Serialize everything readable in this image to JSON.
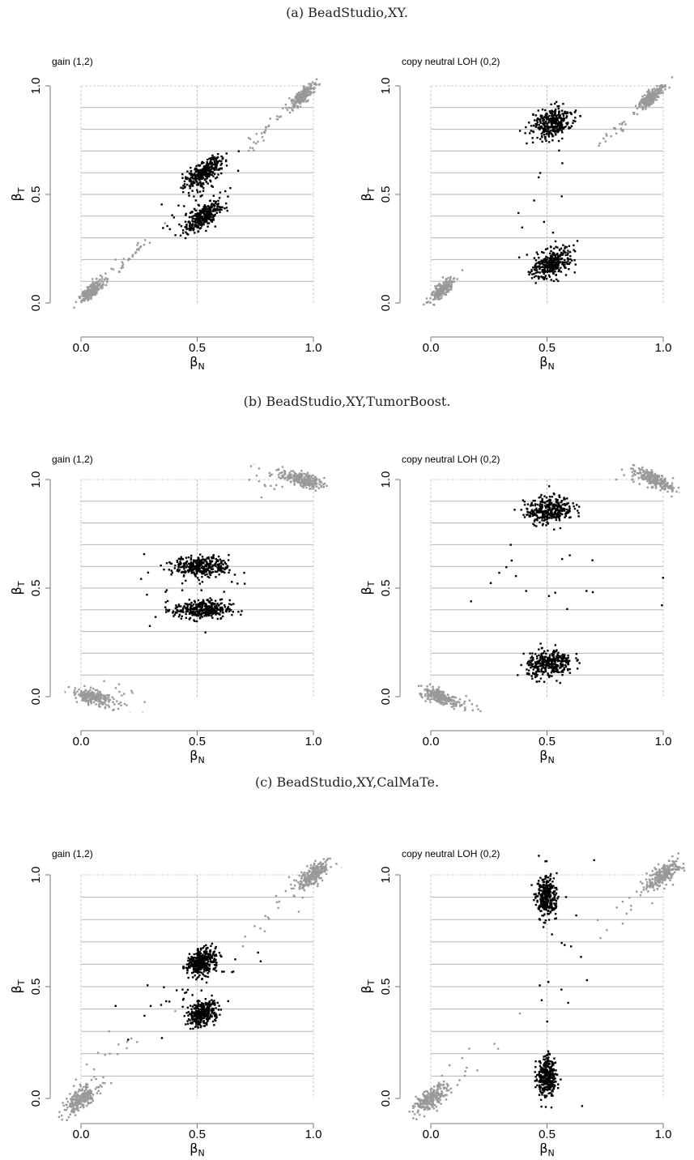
{
  "captions": [
    "(a) BeadStudio,XY.",
    "(b) BeadStudio,XY,TumorBoost.",
    "(c) BeadStudio,XY,CalMaTe."
  ],
  "colors": {
    "homozygous": "#999999",
    "heterozygous": "#000000",
    "grid": "#b5b5b5",
    "axis": "#777777"
  },
  "chart_data": [
    {
      "type": "scatter",
      "section": 0,
      "title": "gain (1,2)",
      "xlabel": "β",
      "xlabel_sub": "N",
      "ylabel": "β",
      "ylabel_sub": "T",
      "xlim": [
        0,
        1
      ],
      "ylim": [
        0,
        1
      ],
      "xticks": [
        0.0,
        0.5,
        1.0
      ],
      "xtick_labels": [
        "0.0",
        "0.5",
        "1.0"
      ],
      "yticks": [
        0.0,
        0.5,
        1.0
      ],
      "ytick_labels": [
        "0.0",
        "0.5",
        "1.0"
      ],
      "hlines": [
        0.9,
        0.8,
        0.7,
        0.6,
        0.5,
        0.4,
        0.3,
        0.2,
        0.1
      ],
      "vline": 0.5,
      "series": [
        {
          "color": "homozygous",
          "clusters": [
            {
              "cx": 0.05,
              "cy": 0.06,
              "major": 0.035,
              "minor": 0.012,
              "angle": 45,
              "n": 220
            },
            {
              "cx": 0.95,
              "cy": 0.95,
              "major": 0.035,
              "minor": 0.012,
              "angle": 45,
              "n": 220
            },
            {
              "cx": 0.2,
              "cy": 0.2,
              "major": 0.09,
              "minor": 0.012,
              "angle": 45,
              "n": 30
            },
            {
              "cx": 0.8,
              "cy": 0.8,
              "major": 0.09,
              "minor": 0.012,
              "angle": 45,
              "n": 30
            }
          ]
        },
        {
          "color": "heterozygous",
          "clusters": [
            {
              "cx": 0.53,
              "cy": 0.6,
              "major": 0.05,
              "minor": 0.02,
              "angle": 42,
              "n": 320
            },
            {
              "cx": 0.53,
              "cy": 0.4,
              "major": 0.05,
              "minor": 0.02,
              "angle": 42,
              "n": 320
            },
            {
              "cx": 0.5,
              "cy": 0.5,
              "major": 0.13,
              "minor": 0.04,
              "angle": 45,
              "n": 40
            }
          ]
        }
      ]
    },
    {
      "type": "scatter",
      "section": 0,
      "title": "copy neutral LOH (0,2)",
      "xlabel": "β",
      "xlabel_sub": "N",
      "ylabel": "β",
      "ylabel_sub": "T",
      "xlim": [
        0,
        1
      ],
      "ylim": [
        0,
        1
      ],
      "xticks": [
        0.0,
        0.5,
        1.0
      ],
      "xtick_labels": [
        "0.0",
        "0.5",
        "1.0"
      ],
      "yticks": [
        0.0,
        0.5,
        1.0
      ],
      "ytick_labels": [
        "0.0",
        "0.5",
        "1.0"
      ],
      "hlines": [
        0.9,
        0.8,
        0.7,
        0.6,
        0.5,
        0.4,
        0.3,
        0.2,
        0.1
      ],
      "vline": 0.5,
      "series": [
        {
          "color": "homozygous",
          "clusters": [
            {
              "cx": 0.05,
              "cy": 0.06,
              "major": 0.035,
              "minor": 0.012,
              "angle": 45,
              "n": 220
            },
            {
              "cx": 0.95,
              "cy": 0.95,
              "major": 0.035,
              "minor": 0.012,
              "angle": 45,
              "n": 220
            },
            {
              "cx": 0.8,
              "cy": 0.8,
              "major": 0.08,
              "minor": 0.012,
              "angle": 45,
              "n": 25
            }
          ]
        },
        {
          "color": "heterozygous",
          "clusters": [
            {
              "cx": 0.52,
              "cy": 0.83,
              "major": 0.045,
              "minor": 0.03,
              "angle": 30,
              "n": 330
            },
            {
              "cx": 0.52,
              "cy": 0.18,
              "major": 0.045,
              "minor": 0.03,
              "angle": 30,
              "n": 330
            },
            {
              "cx": 0.5,
              "cy": 0.5,
              "major": 0.25,
              "minor": 0.06,
              "angle": 80,
              "n": 18
            }
          ]
        }
      ]
    },
    {
      "type": "scatter",
      "section": 1,
      "title": "gain (1,2)",
      "xlabel": "β",
      "xlabel_sub": "N",
      "ylabel": "β",
      "ylabel_sub": "T",
      "xlim": [
        0,
        1
      ],
      "ylim": [
        0,
        1
      ],
      "xticks": [
        0.0,
        0.5,
        1.0
      ],
      "xtick_labels": [
        "0.0",
        "0.5",
        "1.0"
      ],
      "yticks": [
        0.0,
        0.5,
        1.0
      ],
      "ytick_labels": [
        "0.0",
        "0.5",
        "1.0"
      ],
      "hlines": [
        0.9,
        0.8,
        0.7,
        0.6,
        0.5,
        0.4,
        0.3,
        0.2,
        0.1
      ],
      "vline": 0.5,
      "series": [
        {
          "color": "homozygous",
          "clusters": [
            {
              "cx": 0.05,
              "cy": 0.0,
              "major": 0.045,
              "minor": 0.015,
              "angle": -15,
              "n": 220
            },
            {
              "cx": 0.95,
              "cy": 1.0,
              "major": 0.045,
              "minor": 0.015,
              "angle": -15,
              "n": 220
            },
            {
              "cx": 0.17,
              "cy": -0.02,
              "major": 0.06,
              "minor": 0.04,
              "angle": 0,
              "n": 25
            },
            {
              "cx": 0.83,
              "cy": 1.02,
              "major": 0.06,
              "minor": 0.04,
              "angle": 0,
              "n": 25
            }
          ]
        },
        {
          "color": "heterozygous",
          "clusters": [
            {
              "cx": 0.52,
              "cy": 0.6,
              "major": 0.06,
              "minor": 0.022,
              "angle": 0,
              "n": 330
            },
            {
              "cx": 0.52,
              "cy": 0.4,
              "major": 0.06,
              "minor": 0.022,
              "angle": 0,
              "n": 330
            },
            {
              "cx": 0.5,
              "cy": 0.5,
              "major": 0.12,
              "minor": 0.08,
              "angle": 0,
              "n": 30
            }
          ]
        }
      ]
    },
    {
      "type": "scatter",
      "section": 1,
      "title": "copy neutral LOH (0,2)",
      "xlabel": "β",
      "xlabel_sub": "N",
      "ylabel": "β",
      "ylabel_sub": "T",
      "xlim": [
        0,
        1
      ],
      "ylim": [
        0,
        1
      ],
      "xticks": [
        0.0,
        0.5,
        1.0
      ],
      "xtick_labels": [
        "0.0",
        "0.5",
        "1.0"
      ],
      "yticks": [
        0.0,
        0.5,
        1.0
      ],
      "ytick_labels": [
        "0.0",
        "0.5",
        "1.0"
      ],
      "hlines": [
        0.9,
        0.8,
        0.7,
        0.6,
        0.5,
        0.4,
        0.3,
        0.2,
        0.1
      ],
      "vline": 0.5,
      "series": [
        {
          "color": "homozygous",
          "clusters": [
            {
              "cx": 0.04,
              "cy": 0.0,
              "major": 0.045,
              "minor": 0.015,
              "angle": -25,
              "n": 220
            },
            {
              "cx": 0.96,
              "cy": 1.0,
              "major": 0.045,
              "minor": 0.015,
              "angle": -25,
              "n": 220
            },
            {
              "cx": 0.15,
              "cy": -0.05,
              "major": 0.06,
              "minor": 0.03,
              "angle": -30,
              "n": 20
            },
            {
              "cx": 0.85,
              "cy": 1.05,
              "major": 0.06,
              "minor": 0.03,
              "angle": -30,
              "n": 20
            }
          ]
        },
        {
          "color": "heterozygous",
          "clusters": [
            {
              "cx": 0.51,
              "cy": 0.86,
              "major": 0.05,
              "minor": 0.03,
              "angle": 10,
              "n": 330
            },
            {
              "cx": 0.51,
              "cy": 0.15,
              "major": 0.05,
              "minor": 0.03,
              "angle": 10,
              "n": 330
            },
            {
              "cx": 0.5,
              "cy": 0.5,
              "major": 0.22,
              "minor": 0.12,
              "angle": 0,
              "n": 18
            }
          ]
        }
      ]
    },
    {
      "type": "scatter",
      "section": 2,
      "title": "gain (1,2)",
      "xlabel": "β",
      "xlabel_sub": "N",
      "ylabel": "β",
      "ylabel_sub": "T",
      "xlim": [
        -0.1,
        1.1
      ],
      "ylim": [
        -0.1,
        1.1
      ],
      "xticks": [
        0.0,
        0.5,
        1.0
      ],
      "xtick_labels": [
        "0.0",
        "0.5",
        "1.0"
      ],
      "yticks": [
        0.0,
        0.5,
        1.0
      ],
      "ytick_labels": [
        "0.0",
        "0.5",
        "1.0"
      ],
      "hlines": [
        0.9,
        0.8,
        0.7,
        0.6,
        0.5,
        0.4,
        0.3,
        0.2,
        0.1
      ],
      "vline": 0.5,
      "series": [
        {
          "color": "homozygous",
          "clusters": [
            {
              "cx": 0.0,
              "cy": 0.0,
              "major": 0.045,
              "minor": 0.018,
              "angle": 40,
              "n": 240
            },
            {
              "cx": 1.0,
              "cy": 1.0,
              "major": 0.045,
              "minor": 0.018,
              "angle": 40,
              "n": 240
            },
            {
              "cx": 0.15,
              "cy": 0.22,
              "major": 0.12,
              "minor": 0.03,
              "angle": 35,
              "n": 15
            },
            {
              "cx": 0.85,
              "cy": 0.85,
              "major": 0.12,
              "minor": 0.03,
              "angle": 45,
              "n": 20
            }
          ]
        },
        {
          "color": "heterozygous",
          "clusters": [
            {
              "cx": 0.52,
              "cy": 0.61,
              "major": 0.035,
              "minor": 0.025,
              "angle": 40,
              "n": 330
            },
            {
              "cx": 0.52,
              "cy": 0.38,
              "major": 0.035,
              "minor": 0.025,
              "angle": 40,
              "n": 330
            },
            {
              "cx": 0.45,
              "cy": 0.45,
              "major": 0.18,
              "minor": 0.05,
              "angle": 35,
              "n": 40
            }
          ]
        }
      ]
    },
    {
      "type": "scatter",
      "section": 2,
      "title": "copy neutral LOH (0,2)",
      "xlabel": "β",
      "xlabel_sub": "N",
      "ylabel": "β",
      "ylabel_sub": "T",
      "xlim": [
        -0.1,
        1.1
      ],
      "ylim": [
        -0.1,
        1.1
      ],
      "xticks": [
        0.0,
        0.5,
        1.0
      ],
      "xtick_labels": [
        "0.0",
        "0.5",
        "1.0"
      ],
      "yticks": [
        0.0,
        0.5,
        1.0
      ],
      "ytick_labels": [
        "0.0",
        "0.5",
        "1.0"
      ],
      "hlines": [
        0.9,
        0.8,
        0.7,
        0.6,
        0.5,
        0.4,
        0.3,
        0.2,
        0.1
      ],
      "vline": 0.5,
      "series": [
        {
          "color": "homozygous",
          "clusters": [
            {
              "cx": 0.0,
              "cy": 0.0,
              "major": 0.045,
              "minor": 0.018,
              "angle": 40,
              "n": 240
            },
            {
              "cx": 1.0,
              "cy": 1.0,
              "major": 0.045,
              "minor": 0.018,
              "angle": 40,
              "n": 240
            },
            {
              "cx": 0.15,
              "cy": 0.15,
              "major": 0.12,
              "minor": 0.03,
              "angle": 45,
              "n": 15
            },
            {
              "cx": 0.85,
              "cy": 0.85,
              "major": 0.12,
              "minor": 0.03,
              "angle": 45,
              "n": 15
            }
          ]
        },
        {
          "color": "heterozygous",
          "clusters": [
            {
              "cx": 0.5,
              "cy": 0.9,
              "major": 0.045,
              "minor": 0.02,
              "angle": 90,
              "n": 330
            },
            {
              "cx": 0.5,
              "cy": 0.1,
              "major": 0.045,
              "minor": 0.02,
              "angle": 90,
              "n": 330
            },
            {
              "cx": 0.55,
              "cy": 0.5,
              "major": 0.3,
              "minor": 0.08,
              "angle": 85,
              "n": 20
            }
          ]
        }
      ]
    }
  ]
}
